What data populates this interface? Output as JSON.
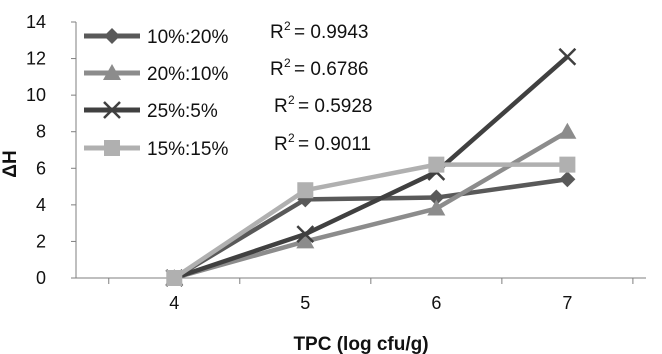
{
  "chart_data": {
    "type": "line",
    "xlabel": "TPC (log cfu/g)",
    "ylabel": "ΔH",
    "x": [
      4,
      5,
      6,
      7
    ],
    "xlim": [
      3.25,
      7.6
    ],
    "ylim": [
      0,
      14
    ],
    "yticks": [
      0,
      2,
      4,
      6,
      8,
      10,
      12,
      14
    ],
    "grid": false,
    "legend": "top-left",
    "series": [
      {
        "name": "10%:20%",
        "values": [
          0,
          4.3,
          4.4,
          5.4
        ],
        "color": "#595959",
        "marker": "diamond",
        "r2_label": "R",
        "r2_sup": "2",
        "r2_value": "= 0.9943"
      },
      {
        "name": "20%:10%",
        "values": [
          0,
          2.0,
          3.8,
          8.0
        ],
        "color": "#8c8c8c",
        "marker": "triangle",
        "r2_label": "R",
        "r2_sup": "2",
        "r2_value": "= 0.6786"
      },
      {
        "name": "25%:5%",
        "values": [
          0,
          2.4,
          5.8,
          12.1
        ],
        "color": "#404040",
        "marker": "cross",
        "r2_label": "R",
        "r2_sup": "2",
        "r2_value": "= 0.5928"
      },
      {
        "name": "15%:15%",
        "values": [
          0,
          4.8,
          6.2,
          6.2
        ],
        "color": "#b0b0b0",
        "marker": "square",
        "r2_label": "R",
        "r2_sup": "2",
        "r2_value": "= 0.9011"
      }
    ]
  }
}
